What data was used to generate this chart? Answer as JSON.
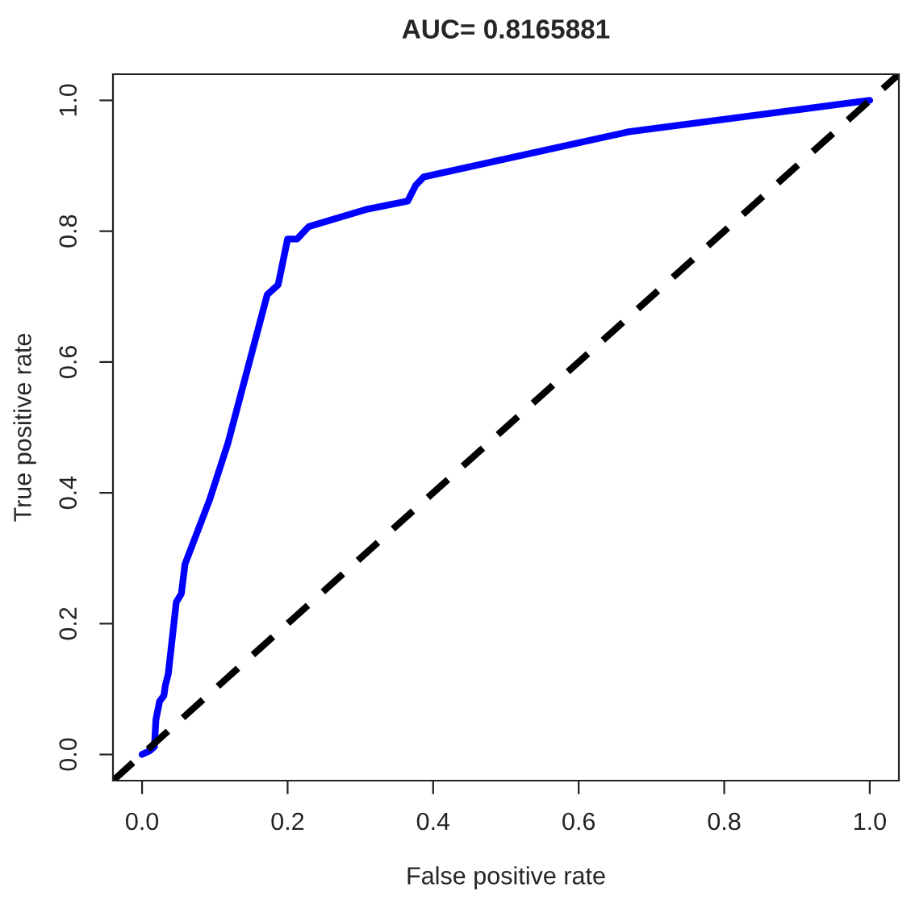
{
  "chart_data": {
    "type": "line",
    "title": "AUC= 0.8165881",
    "xlabel": "False positive rate",
    "ylabel": "True positive rate",
    "series": [
      {
        "color": "#0000ff",
        "line_style": "solid",
        "x": [
          0,
          0.011,
          0.017,
          0.019,
          0.024,
          0.03,
          0.032,
          0.036,
          0.047,
          0.054,
          0.059,
          0.093,
          0.118,
          0.172,
          0.187,
          0.2,
          0.213,
          0.229,
          0.307,
          0.365,
          0.376,
          0.387,
          0.669,
          1
        ],
        "values": [
          0,
          0.006,
          0.012,
          0.053,
          0.081,
          0.09,
          0.106,
          0.123,
          0.233,
          0.246,
          0.291,
          0.39,
          0.476,
          0.703,
          0.718,
          0.788,
          0.788,
          0.807,
          0.833,
          0.846,
          0.87,
          0.883,
          0.952,
          1
        ]
      },
      {
        "color": "#000000",
        "line_style": "dashed",
        "x": [
          -0.04,
          1.04
        ],
        "values": [
          -0.04,
          1.04
        ]
      }
    ],
    "xlim": [
      -0.04,
      1.04
    ],
    "ylim": [
      -0.04,
      1.04
    ],
    "xticks": [
      {
        "value": 0,
        "label": "0.0"
      },
      0.2,
      0.4,
      0.6,
      0.8,
      {
        "value": 1,
        "label": "1.0"
      }
    ],
    "yticks": [
      {
        "value": 0,
        "label": "0.0"
      },
      0.2,
      0.4,
      0.6,
      0.8,
      {
        "value": 1,
        "label": "1.0"
      }
    ],
    "grid": false,
    "legend": false
  }
}
